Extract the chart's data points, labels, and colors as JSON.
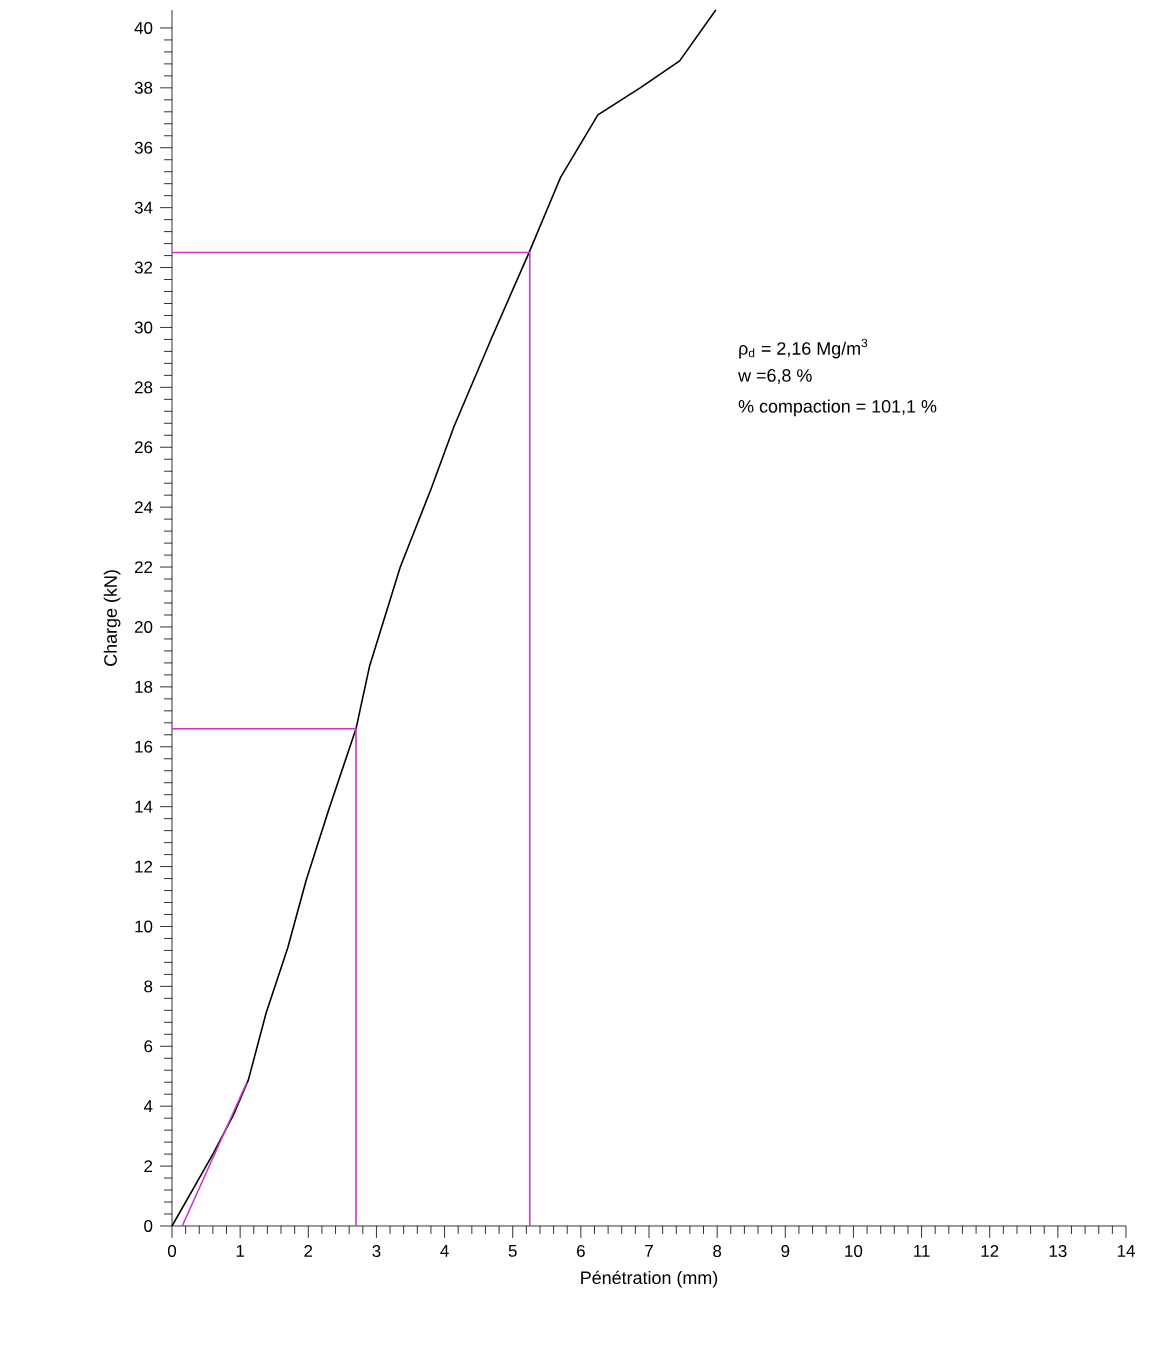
{
  "chart_data": {
    "type": "line",
    "xlabel": "Pénétration (mm)",
    "ylabel": "Charge (kN)",
    "xlim": [
      0,
      14
    ],
    "ylim": [
      0,
      40.6
    ],
    "xticks": [
      0,
      1,
      2,
      3,
      4,
      5,
      6,
      7,
      8,
      9,
      10,
      11,
      12,
      13,
      14
    ],
    "yticks": [
      0,
      2,
      4,
      6,
      8,
      10,
      12,
      14,
      16,
      18,
      20,
      22,
      24,
      26,
      28,
      30,
      32,
      34,
      36,
      38,
      40
    ],
    "grid": false,
    "marker": "none",
    "line_style": "solid",
    "series": [
      {
        "color": "#000000",
        "x": [
          0,
          0.3,
          0.6,
          0.9,
          1.12,
          1.38,
          1.7,
          1.97,
          2.3,
          2.7,
          2.9,
          3.35,
          3.8,
          4.14,
          4.7,
          5.23,
          5.7,
          6.25,
          6.87,
          7.45,
          7.98
        ],
        "values": [
          0,
          1.2,
          2.4,
          3.7,
          4.87,
          7.1,
          9.3,
          11.55,
          13.9,
          16.6,
          18.7,
          22.0,
          24.6,
          26.7,
          29.7,
          32.45,
          35.0,
          37.1,
          38.0,
          38.9,
          40.6
        ]
      },
      {
        "color": "#cc33cc",
        "x": [
          0.15,
          1.1
        ],
        "values": [
          0,
          4.8
        ]
      },
      {
        "color": "#cc33cc",
        "x": [
          0,
          2.7,
          2.7
        ],
        "values": [
          16.6,
          16.6,
          0
        ]
      },
      {
        "color": "#cc33cc",
        "x": [
          0,
          5.25,
          5.25
        ],
        "values": [
          32.5,
          32.5,
          0
        ]
      }
    ],
    "annotations": [
      "ρ$_{d}$ = 2,16 Mg/m$^{3}$",
      "w =6,8 %",
      "% compaction = 101,1 %"
    ]
  }
}
